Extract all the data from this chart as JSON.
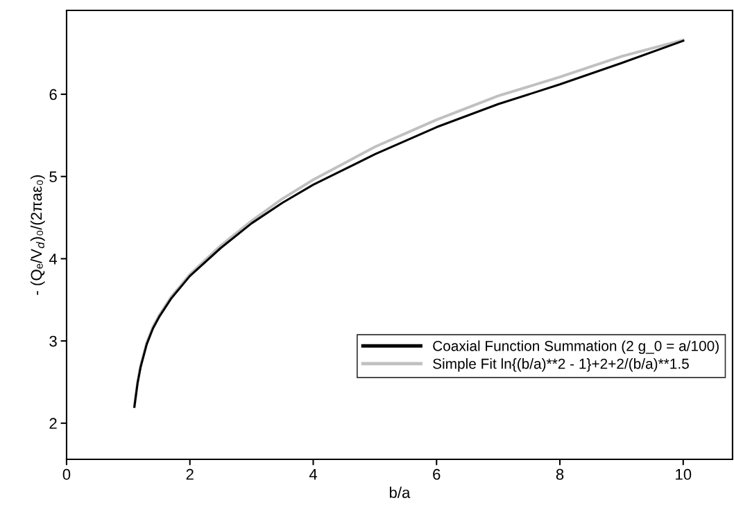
{
  "chart_data": {
    "type": "line",
    "xlabel": "b/a",
    "ylabel": "- (Qₑ/V$_{d}$)₀/(2πaε₀)",
    "series": [
      {
        "name": "Coaxial Function Summation (2 g_0 = a/100)",
        "color": "#000000",
        "x": [
          1.1,
          1.15,
          1.2,
          1.3,
          1.4,
          1.5,
          1.7,
          2,
          2.5,
          3,
          3.5,
          4,
          5,
          6,
          7,
          8,
          9,
          10
        ],
        "values": [
          2.2,
          2.48,
          2.68,
          2.96,
          3.15,
          3.29,
          3.52,
          3.79,
          4.13,
          4.43,
          4.68,
          4.9,
          5.27,
          5.6,
          5.88,
          6.12,
          6.38,
          6.65
        ]
      },
      {
        "name": "Simple Fit ln{(b/a)**2 - 1}+2+2/(b/a)**1.5",
        "color": "#c0c0c0",
        "x": [
          1.1,
          1.15,
          1.2,
          1.3,
          1.4,
          1.5,
          1.7,
          2,
          2.5,
          3,
          3.5,
          4,
          5,
          6,
          7,
          8,
          9,
          10
        ],
        "values": [
          2.2,
          2.49,
          2.7,
          2.98,
          3.17,
          3.31,
          3.54,
          3.81,
          4.16,
          4.46,
          4.73,
          4.96,
          5.36,
          5.69,
          5.98,
          6.21,
          6.46,
          6.66
        ]
      }
    ],
    "xlim": [
      0,
      10.8
    ],
    "xticks": [
      0,
      2,
      4,
      6,
      8,
      10
    ],
    "ylim": [
      1.56,
      7.02
    ],
    "yticks": [
      2,
      3,
      4,
      5,
      6
    ],
    "grid": false,
    "legend": "right",
    "marker": "none",
    "line_style": "solid"
  }
}
